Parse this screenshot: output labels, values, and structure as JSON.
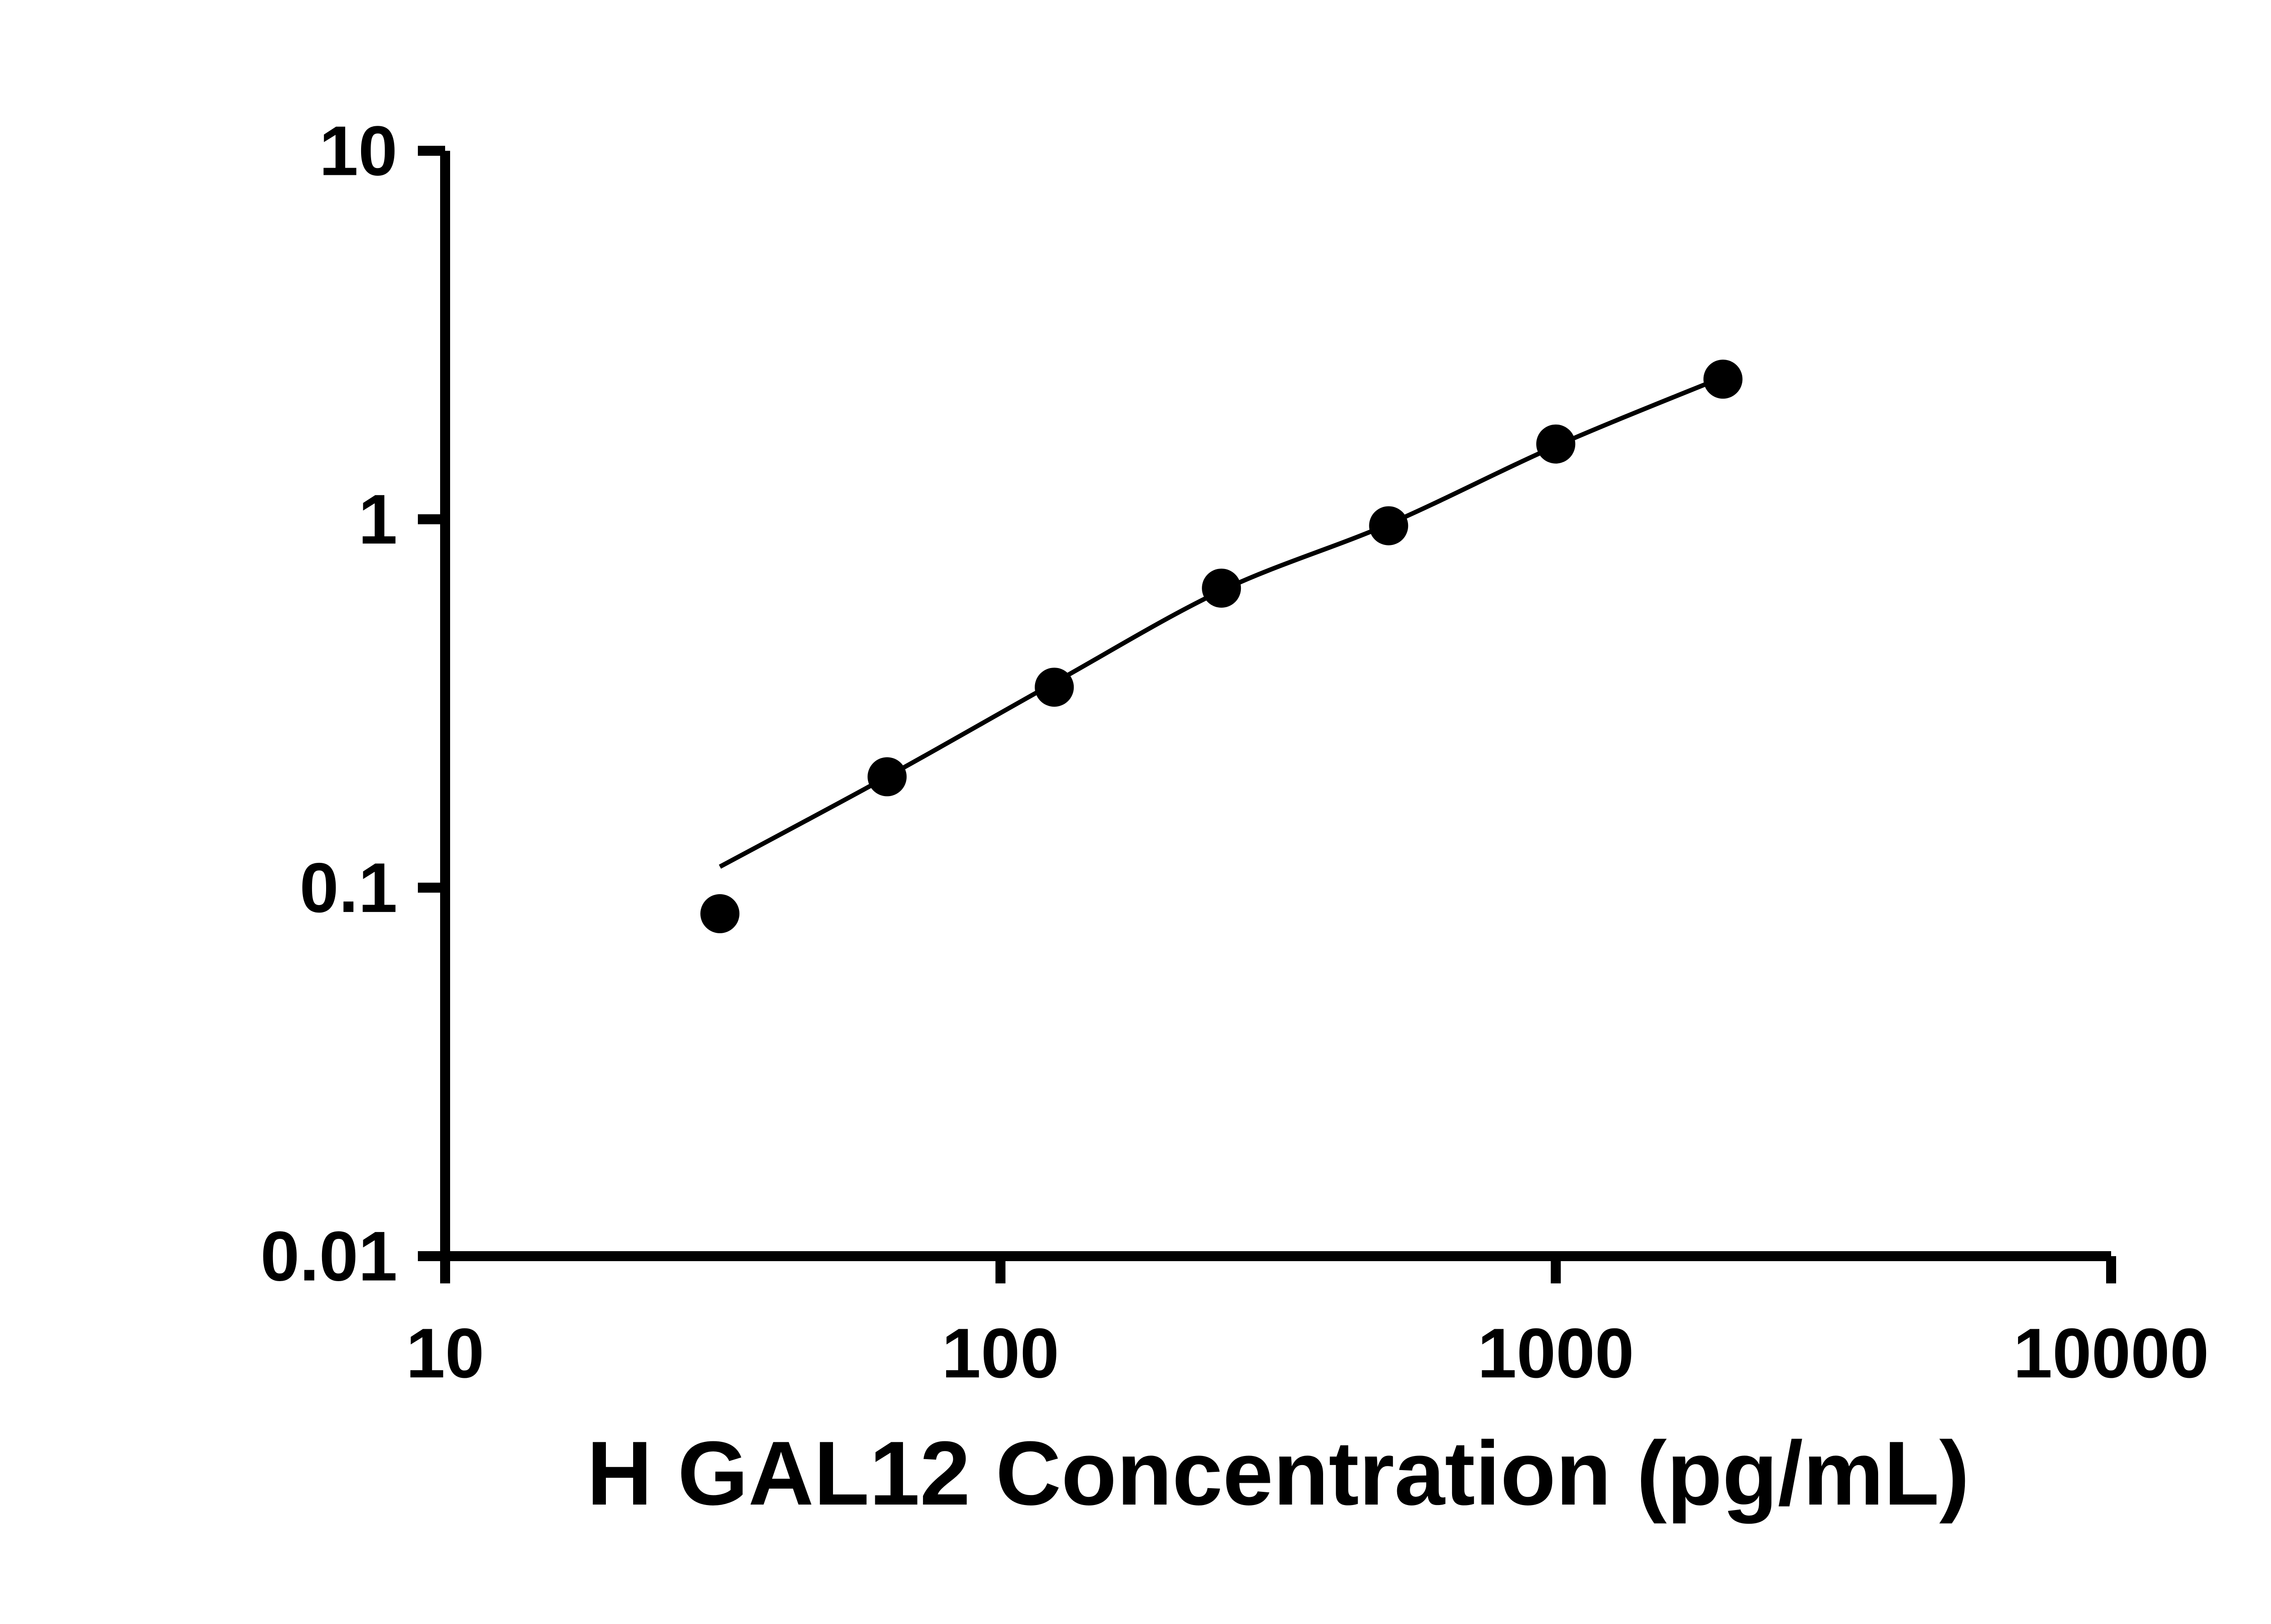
{
  "colors": {
    "foreground": "#000000",
    "background": "#ffffff"
  },
  "chart_data": {
    "type": "scatter",
    "title": "",
    "xlabel": "H GAL12 Concentration (pg/mL)",
    "ylabel": "",
    "x_scale": "log",
    "y_scale": "log",
    "xlim": [
      10,
      10000
    ],
    "ylim": [
      0.01,
      10
    ],
    "x_ticks": [
      10,
      100,
      1000,
      10000
    ],
    "x_tick_labels": [
      "10",
      "100",
      "1000",
      "10000"
    ],
    "y_ticks": [
      0.01,
      0.1,
      1,
      10
    ],
    "y_tick_labels": [
      "0.01",
      "0.1",
      "1",
      "10"
    ],
    "grid": false,
    "legend": null,
    "series": [
      {
        "name": "fit-line",
        "type": "line",
        "color": "#000000",
        "points": [
          {
            "x": 31.25,
            "y": 0.114
          },
          {
            "x": 62.5,
            "y": 0.2
          },
          {
            "x": 125,
            "y": 0.36
          },
          {
            "x": 250,
            "y": 0.64
          },
          {
            "x": 500,
            "y": 0.97
          },
          {
            "x": 1000,
            "y": 1.58
          },
          {
            "x": 2000,
            "y": 2.43
          }
        ]
      },
      {
        "name": "standard-points",
        "type": "scatter",
        "marker": "circle",
        "color": "#000000",
        "points": [
          {
            "x": 31.25,
            "y": 0.085
          },
          {
            "x": 62.5,
            "y": 0.2
          },
          {
            "x": 125,
            "y": 0.35
          },
          {
            "x": 250,
            "y": 0.65
          },
          {
            "x": 500,
            "y": 0.96
          },
          {
            "x": 1000,
            "y": 1.6
          },
          {
            "x": 2000,
            "y": 2.4
          }
        ]
      }
    ]
  }
}
